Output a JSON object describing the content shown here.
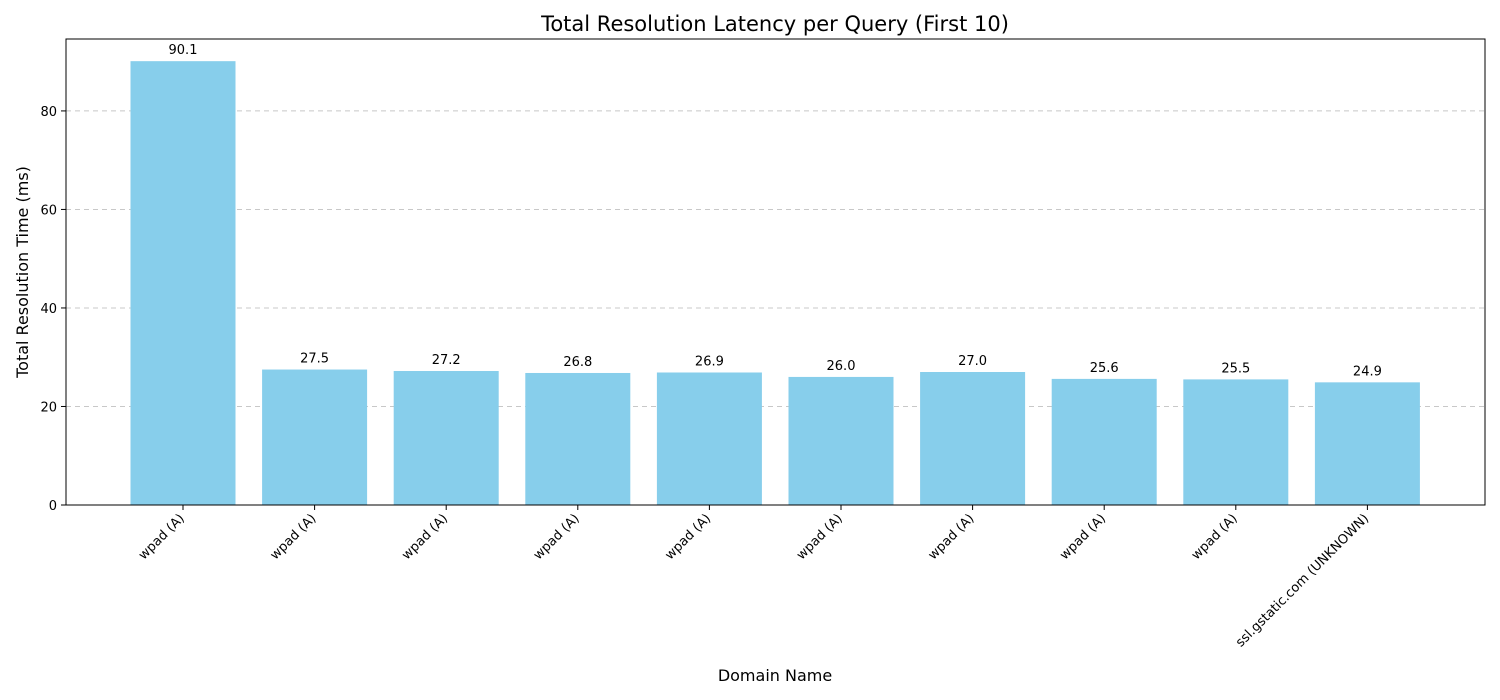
{
  "chart_data": {
    "type": "bar",
    "title": "Total Resolution Latency per Query (First 10)",
    "xlabel": "Domain Name",
    "ylabel": "Total Resolution Time (ms)",
    "categories": [
      "wpad (A)",
      "wpad (A)",
      "wpad (A)",
      "wpad (A)",
      "wpad (A)",
      "wpad (A)",
      "wpad (A)",
      "wpad (A)",
      "wpad (A)",
      "ssl.gstatic.com (UNKNOWN)"
    ],
    "values": [
      90.1,
      27.5,
      27.2,
      26.8,
      26.9,
      26.0,
      27.0,
      25.6,
      25.5,
      24.9
    ],
    "value_labels": [
      "90.1",
      "27.5",
      "27.2",
      "26.8",
      "26.9",
      "26.0",
      "27.0",
      "25.6",
      "25.5",
      "24.9"
    ],
    "ylim": [
      0,
      94.6
    ],
    "yticks": [
      0,
      20,
      40,
      60,
      80
    ],
    "ytick_labels": [
      "0",
      "20",
      "40",
      "60",
      "80"
    ],
    "grid": "y-dashed",
    "bar_color": "#87ceeb"
  }
}
